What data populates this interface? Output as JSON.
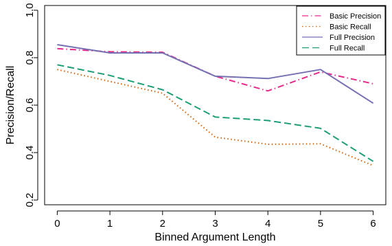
{
  "chart_data": {
    "type": "line",
    "title": "",
    "xlabel": "Binned Argument Length",
    "ylabel": "Precision/Recall",
    "x": [
      0,
      1,
      2,
      3,
      4,
      5,
      6
    ],
    "x_ticks": [
      "0",
      "1",
      "2",
      "3",
      "4",
      "5",
      "6"
    ],
    "y_ticks": [
      "0.2",
      "0.4",
      "0.6",
      "0.8",
      "1.0"
    ],
    "xlim": [
      -0.24,
      6.24
    ],
    "ylim": [
      0.18,
      1.02
    ],
    "grid": false,
    "legend_position": "top-right",
    "series": [
      {
        "name": "Basic Precision",
        "values": [
          0.838,
          0.825,
          0.823,
          0.722,
          0.66,
          0.74,
          0.69
        ],
        "color": "#E7298A",
        "dash": "dotdash"
      },
      {
        "name": "Basic Recall",
        "values": [
          0.75,
          0.7,
          0.65,
          0.465,
          0.435,
          0.437,
          0.345
        ],
        "color": "#D95F02",
        "dash": "dotted"
      },
      {
        "name": "Full Precision",
        "values": [
          0.855,
          0.82,
          0.82,
          0.722,
          0.712,
          0.75,
          0.608
        ],
        "color": "#7570B3",
        "dash": "solid"
      },
      {
        "name": "Full Recall",
        "values": [
          0.77,
          0.725,
          0.665,
          0.55,
          0.535,
          0.502,
          0.363
        ],
        "color": "#1B9E77",
        "dash": "dashed"
      }
    ]
  }
}
